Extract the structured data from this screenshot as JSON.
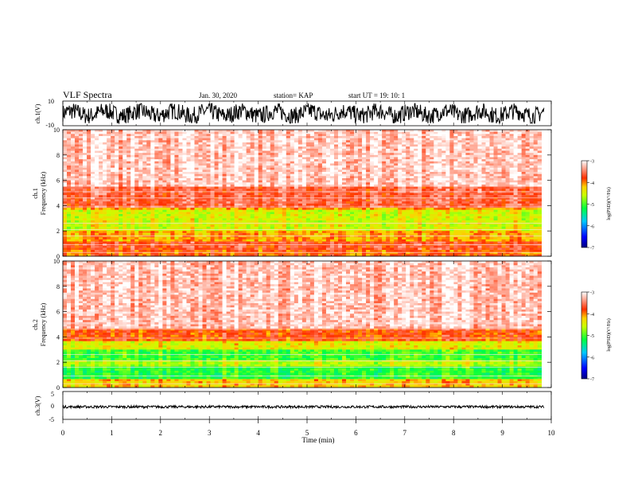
{
  "header": {
    "title": "VLF Spectra",
    "date": "Jan. 30, 2020",
    "station": "station= KAP",
    "start": "start UT =   19: 10: 1"
  },
  "chart_data": [
    {
      "type": "line",
      "id": "ch1",
      "ylabel": "ch.1(V)",
      "ylim": [
        -10,
        10
      ],
      "yticks": [
        "10",
        "-10"
      ],
      "xlim": [
        0,
        10
      ],
      "series": [
        {
          "color": "#000000",
          "range": [
            -8,
            8
          ]
        }
      ]
    },
    {
      "type": "heatmap",
      "id": "ch1-spec",
      "ylabel": "ch.1\nFrequency (kHz)",
      "ylim": [
        0,
        10
      ],
      "yticks": [
        "0",
        "2",
        "4",
        "6",
        "8",
        "10"
      ],
      "xlim": [
        0,
        9.8
      ],
      "bands": [
        {
          "from": 0.0,
          "to": 0.5,
          "level": -3.9
        },
        {
          "from": 0.5,
          "to": 1.2,
          "level": -3.7
        },
        {
          "from": 1.2,
          "to": 2.0,
          "level": -4.1
        },
        {
          "from": 2.0,
          "to": 3.6,
          "level": -4.5
        },
        {
          "from": 3.6,
          "to": 3.9,
          "level": -4.1
        },
        {
          "from": 3.9,
          "to": 5.5,
          "level": -3.6
        },
        {
          "from": 5.5,
          "to": 10.0,
          "level": -3.2
        }
      ],
      "colorbar": {
        "ticks": [
          "-3",
          "-4",
          "-5",
          "-6",
          "-7"
        ],
        "label": "log(PSD)(V²/Hz)",
        "range": [
          -7,
          -3
        ]
      }
    },
    {
      "type": "heatmap",
      "id": "ch2-spec",
      "ylabel": "ch.2\nFrequency (kHz)",
      "ylim": [
        0,
        10
      ],
      "yticks": [
        "0",
        "2",
        "4",
        "6",
        "8",
        "10"
      ],
      "xlim": [
        0,
        9.8
      ],
      "bands": [
        {
          "from": 0.0,
          "to": 0.6,
          "level": -4.2
        },
        {
          "from": 0.6,
          "to": 1.7,
          "level": -5.1
        },
        {
          "from": 1.7,
          "to": 2.1,
          "level": -4.6
        },
        {
          "from": 2.1,
          "to": 3.0,
          "level": -5.0
        },
        {
          "from": 3.0,
          "to": 3.6,
          "level": -4.4
        },
        {
          "from": 3.6,
          "to": 4.6,
          "level": -3.8
        },
        {
          "from": 4.6,
          "to": 10.0,
          "level": -3.2
        }
      ],
      "colorbar": {
        "ticks": [
          "-3",
          "-4",
          "-5",
          "-6",
          "-7"
        ],
        "label": "log(PSD)(V²/Hz)",
        "range": [
          -7,
          -3
        ]
      }
    },
    {
      "type": "line",
      "id": "ch3",
      "ylabel": "ch.3(V)",
      "ylim": [
        -5,
        5
      ],
      "yticks": [
        "5",
        "0",
        "-5"
      ],
      "xlim": [
        0,
        10
      ],
      "series": [
        {
          "color": "#000000",
          "range": [
            -1,
            0
          ]
        }
      ]
    }
  ],
  "xaxis": {
    "label": "Time (min)",
    "ticks": [
      "0",
      "1",
      "2",
      "3",
      "4",
      "5",
      "6",
      "7",
      "8",
      "9",
      "10"
    ]
  }
}
